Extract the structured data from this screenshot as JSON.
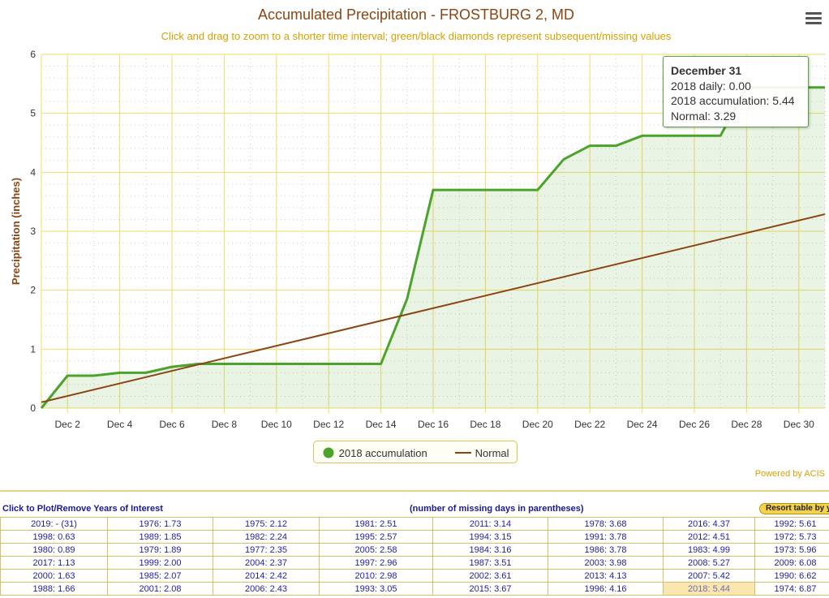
{
  "colors": {
    "accumulation": "#4aa42c",
    "normal": "#8b4513",
    "grid": "#f2dc6a",
    "title": "#8b4513",
    "subtitle": "#d8a000",
    "highlight": "#fbe6b0"
  },
  "menu": {
    "icon": "hamburger-menu-icon"
  },
  "chart_data": {
    "type": "line",
    "title": "Accumulated Precipitation - FROSTBURG 2, MD",
    "subtitle": "Click and drag to zoom to a shorter time interval; green/black diamonds represent subsequent/missing values",
    "xlabel": "",
    "ylabel": "Precipitation (inches)",
    "ylim": [
      0,
      6
    ],
    "xlim": [
      1,
      31
    ],
    "yticks": [
      0,
      1,
      2,
      3,
      4,
      5,
      6
    ],
    "xticks": [
      "Dec 2",
      "Dec 4",
      "Dec 6",
      "Dec 8",
      "Dec 10",
      "Dec 12",
      "Dec 14",
      "Dec 16",
      "Dec 18",
      "Dec 20",
      "Dec 22",
      "Dec 24",
      "Dec 26",
      "Dec 28",
      "Dec 30"
    ],
    "grid": true,
    "legend_position": "bottom-center",
    "series": [
      {
        "name": "2018 accumulation",
        "x": [
          1,
          2,
          3,
          4,
          5,
          6,
          7,
          8,
          9,
          10,
          11,
          12,
          13,
          14,
          15,
          16,
          17,
          18,
          19,
          20,
          21,
          22,
          23,
          24,
          25,
          26,
          27,
          28,
          29,
          30,
          31
        ],
        "values": [
          0.0,
          0.55,
          0.55,
          0.6,
          0.6,
          0.7,
          0.75,
          0.75,
          0.75,
          0.75,
          0.75,
          0.75,
          0.75,
          0.75,
          1.85,
          3.7,
          3.7,
          3.7,
          3.7,
          3.7,
          4.22,
          4.45,
          4.45,
          4.62,
          4.62,
          4.62,
          4.62,
          5.44,
          5.44,
          5.44,
          5.44
        ]
      },
      {
        "name": "Normal",
        "x": [
          1,
          31
        ],
        "values": [
          0.1,
          3.29
        ]
      }
    ],
    "tooltip": {
      "date": "December 31",
      "daily": "2018 daily: 0.00",
      "accumulation": "2018 accumulation: 5.44",
      "normal": "Normal: 3.29"
    }
  },
  "footer": {
    "powered_by": "Powered by ACIS"
  },
  "years_table": {
    "left_header": "Click to Plot/Remove Years of Interest",
    "mid_header": "(number of missing days in parentheses)",
    "resort_label": "Resort table by year",
    "highlighted": "2018: 5.44",
    "rows": [
      [
        "2019: - (31)",
        "1976: 1.73",
        "1975: 2.12",
        "1981: 2.51",
        "2011: 3.14",
        "1978: 3.68",
        "2016: 4.37",
        "1992: 5.61"
      ],
      [
        "1998: 0.63",
        "1989: 1.85",
        "1982: 2.24",
        "1995: 2.57",
        "1994: 3.15",
        "1991: 3.78",
        "2012: 4.51",
        "1972: 5.73"
      ],
      [
        "1980: 0.89",
        "1979: 1.89",
        "1977: 2.35",
        "2005: 2.58",
        "1984: 3.16",
        "1986: 3.78",
        "1983: 4.99",
        "1973: 5.96"
      ],
      [
        "2017: 1.13",
        "1999: 2.00",
        "2004: 2.37",
        "1997: 2.96",
        "1987: 3.51",
        "2003: 3.98",
        "2008: 5.27",
        "2009: 6.08"
      ],
      [
        "2000: 1.63",
        "1985: 2.07",
        "2014: 2.42",
        "2010: 2.98",
        "2002: 3.61",
        "2013: 4.13",
        "2007: 5.42",
        "1990: 6.62"
      ],
      [
        "1988: 1.66",
        "2001: 2.08",
        "2006: 2.43",
        "1993: 3.05",
        "2015: 3.67",
        "1996: 4.16",
        "2018: 5.44",
        "1974: 6.87"
      ]
    ]
  }
}
